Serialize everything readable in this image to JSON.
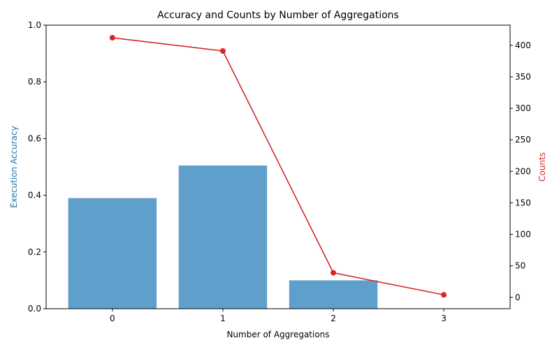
{
  "chart_data": {
    "type": "bar+line",
    "title": "Accuracy and Counts by Number of Aggregations",
    "xlabel": "Number of Aggregations",
    "categories": [
      "0",
      "1",
      "2",
      "3"
    ],
    "bar_series": {
      "axis": "left",
      "ylabel": "Execution Accuracy",
      "ylabel_color": "#1f77b4",
      "color": "#5f9fcc",
      "values": [
        0.39,
        0.505,
        0.1,
        0.0
      ],
      "ylim": [
        0,
        1.0
      ],
      "yticks": [
        "0.0",
        "0.2",
        "0.4",
        "0.6",
        "0.8",
        "1.0"
      ]
    },
    "line_series": {
      "axis": "right",
      "ylabel": "Counts",
      "ylabel_color": "#d62728",
      "color": "#d62728",
      "values": [
        412,
        391,
        39,
        4
      ],
      "ylim": [
        -18,
        432
      ],
      "yticks": [
        "0",
        "50",
        "100",
        "150",
        "200",
        "250",
        "300",
        "350",
        "400"
      ]
    },
    "grid": false,
    "legend": "none"
  }
}
